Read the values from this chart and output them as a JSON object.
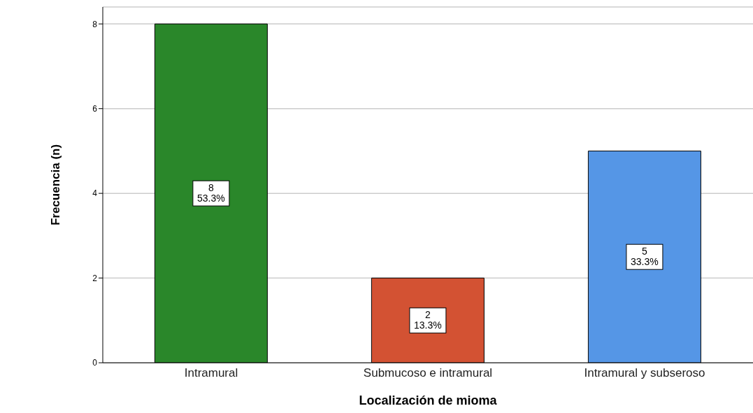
{
  "chart_data": {
    "type": "bar",
    "xlabel": "Localización de mioma",
    "ylabel": "Frecuencia (n)",
    "categories": [
      "Intramural",
      "Submucoso e intramural",
      "Intramural y subseroso"
    ],
    "values": [
      8,
      2,
      5
    ],
    "colors": [
      "#2a872a",
      "#d35233",
      "#5596e6"
    ],
    "value_labels": [
      "8\n53.3%",
      "2\n13.3%",
      "5\n33.3%"
    ],
    "ylim": [
      0,
      8.4
    ],
    "yticks": [
      0,
      2,
      4,
      6,
      8
    ],
    "grid": "y"
  }
}
